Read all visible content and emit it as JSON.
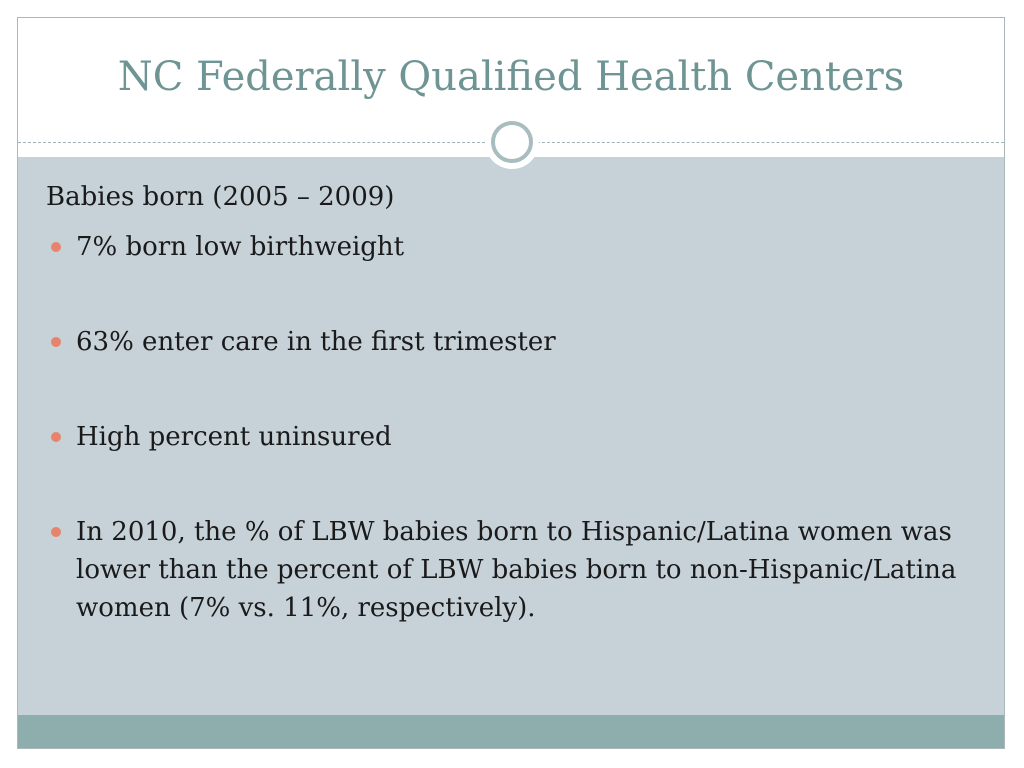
{
  "slide": {
    "title": "NC Federally Qualified Health Centers",
    "heading": "Babies born (2005 – 2009)",
    "bullets": [
      "7% born low birthweight",
      "63% enter care in the first trimester",
      "High percent uninsured",
      "In 2010, the % of LBW babies born to Hispanic/Latina women was lower than the percent of LBW babies born to non-Hispanic/Latina women (7% vs. 11%, respectively)."
    ]
  },
  "colors": {
    "title": "#6f9494",
    "content_background": "#c6d1d8",
    "footer_bar": "#8eaeae",
    "bullet": "#e8836b",
    "ring": "#a9bcbf"
  }
}
